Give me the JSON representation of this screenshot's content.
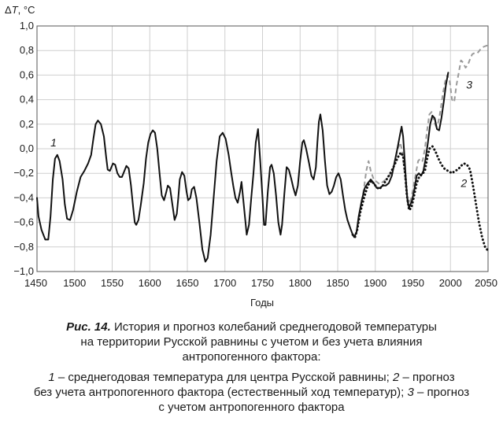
{
  "chart_data": {
    "type": "line",
    "ylabel_prefix": "Δ",
    "ylabel_var": "T",
    "ylabel_unit": ", °C",
    "xlabel": "Годы",
    "xlim": [
      1450,
      2050
    ],
    "ylim": [
      -1.0,
      1.0
    ],
    "x_ticks": [
      "1450",
      "1500",
      "1550",
      "1600",
      "1650",
      "1700",
      "1750",
      "1800",
      "1850",
      "1900",
      "1950",
      "2000",
      "2050"
    ],
    "y_ticks": [
      "1,0",
      "0,8",
      "0,6",
      "0,4",
      "0,2",
      "0,0",
      "−0,2",
      "−0,4",
      "−0,6",
      "−0,8",
      "−1,0"
    ],
    "series": [
      {
        "name": "1",
        "style": "solid",
        "color": "#111111",
        "points": [
          [
            1450,
            -0.4
          ],
          [
            1452,
            -0.55
          ],
          [
            1456,
            -0.66
          ],
          [
            1461,
            -0.74
          ],
          [
            1465,
            -0.74
          ],
          [
            1468,
            -0.55
          ],
          [
            1471,
            -0.25
          ],
          [
            1474,
            -0.08
          ],
          [
            1477,
            -0.05
          ],
          [
            1480,
            -0.1
          ],
          [
            1484,
            -0.25
          ],
          [
            1487,
            -0.45
          ],
          [
            1490,
            -0.57
          ],
          [
            1494,
            -0.58
          ],
          [
            1498,
            -0.5
          ],
          [
            1503,
            -0.35
          ],
          [
            1508,
            -0.23
          ],
          [
            1513,
            -0.18
          ],
          [
            1518,
            -0.12
          ],
          [
            1522,
            -0.05
          ],
          [
            1525,
            0.08
          ],
          [
            1528,
            0.2
          ],
          [
            1531,
            0.23
          ],
          [
            1535,
            0.2
          ],
          [
            1539,
            0.1
          ],
          [
            1542,
            -0.07
          ],
          [
            1544,
            -0.17
          ],
          [
            1547,
            -0.18
          ],
          [
            1551,
            -0.12
          ],
          [
            1554,
            -0.13
          ],
          [
            1557,
            -0.2
          ],
          [
            1560,
            -0.23
          ],
          [
            1563,
            -0.23
          ],
          [
            1567,
            -0.17
          ],
          [
            1569,
            -0.14
          ],
          [
            1572,
            -0.16
          ],
          [
            1575,
            -0.3
          ],
          [
            1578,
            -0.48
          ],
          [
            1580,
            -0.6
          ],
          [
            1582,
            -0.62
          ],
          [
            1585,
            -0.58
          ],
          [
            1588,
            -0.46
          ],
          [
            1592,
            -0.28
          ],
          [
            1595,
            -0.08
          ],
          [
            1598,
            0.05
          ],
          [
            1601,
            0.12
          ],
          [
            1604,
            0.15
          ],
          [
            1607,
            0.13
          ],
          [
            1610,
            0.0
          ],
          [
            1613,
            -0.2
          ],
          [
            1616,
            -0.38
          ],
          [
            1619,
            -0.42
          ],
          [
            1622,
            -0.35
          ],
          [
            1624,
            -0.3
          ],
          [
            1627,
            -0.32
          ],
          [
            1630,
            -0.45
          ],
          [
            1633,
            -0.58
          ],
          [
            1636,
            -0.53
          ],
          [
            1638,
            -0.4
          ],
          [
            1640,
            -0.25
          ],
          [
            1643,
            -0.19
          ],
          [
            1646,
            -0.22
          ],
          [
            1649,
            -0.35
          ],
          [
            1651,
            -0.42
          ],
          [
            1654,
            -0.4
          ],
          [
            1656,
            -0.33
          ],
          [
            1659,
            -0.31
          ],
          [
            1662,
            -0.4
          ],
          [
            1666,
            -0.6
          ],
          [
            1670,
            -0.82
          ],
          [
            1674,
            -0.92
          ],
          [
            1677,
            -0.89
          ],
          [
            1681,
            -0.7
          ],
          [
            1685,
            -0.4
          ],
          [
            1689,
            -0.1
          ],
          [
            1693,
            0.1
          ],
          [
            1697,
            0.13
          ],
          [
            1701,
            0.08
          ],
          [
            1705,
            -0.05
          ],
          [
            1708,
            -0.18
          ],
          [
            1711,
            -0.3
          ],
          [
            1714,
            -0.4
          ],
          [
            1717,
            -0.44
          ],
          [
            1720,
            -0.35
          ],
          [
            1722,
            -0.27
          ],
          [
            1725,
            -0.45
          ],
          [
            1729,
            -0.7
          ],
          [
            1732,
            -0.62
          ],
          [
            1735,
            -0.4
          ],
          [
            1738,
            -0.2
          ],
          [
            1741,
            0.05
          ],
          [
            1744,
            0.16
          ],
          [
            1747,
            -0.1
          ],
          [
            1750,
            -0.4
          ],
          [
            1752,
            -0.62
          ],
          [
            1754,
            -0.62
          ],
          [
            1757,
            -0.35
          ],
          [
            1760,
            -0.15
          ],
          [
            1762,
            -0.13
          ],
          [
            1765,
            -0.2
          ],
          [
            1768,
            -0.38
          ],
          [
            1771,
            -0.6
          ],
          [
            1774,
            -0.7
          ],
          [
            1776,
            -0.62
          ],
          [
            1779,
            -0.37
          ],
          [
            1782,
            -0.15
          ],
          [
            1785,
            -0.17
          ],
          [
            1788,
            -0.24
          ],
          [
            1791,
            -0.32
          ],
          [
            1794,
            -0.38
          ],
          [
            1797,
            -0.3
          ],
          [
            1800,
            -0.1
          ],
          [
            1803,
            0.05
          ],
          [
            1805,
            0.07
          ],
          [
            1808,
            0.0
          ],
          [
            1812,
            -0.12
          ],
          [
            1815,
            -0.22
          ],
          [
            1818,
            -0.25
          ],
          [
            1821,
            -0.15
          ],
          [
            1823,
            0.05
          ],
          [
            1825,
            0.22
          ],
          [
            1827,
            0.28
          ],
          [
            1830,
            0.15
          ],
          [
            1833,
            -0.1
          ],
          [
            1836,
            -0.3
          ],
          [
            1839,
            -0.37
          ],
          [
            1842,
            -0.35
          ],
          [
            1845,
            -0.3
          ],
          [
            1848,
            -0.23
          ],
          [
            1851,
            -0.2
          ],
          [
            1854,
            -0.25
          ],
          [
            1857,
            -0.38
          ],
          [
            1860,
            -0.5
          ],
          [
            1863,
            -0.58
          ],
          [
            1867,
            -0.65
          ],
          [
            1870,
            -0.7
          ],
          [
            1872,
            -0.72
          ],
          [
            1875,
            -0.68
          ],
          [
            1878,
            -0.55
          ],
          [
            1882,
            -0.42
          ],
          [
            1886,
            -0.32
          ],
          [
            1890,
            -0.28
          ],
          [
            1894,
            -0.25
          ],
          [
            1898,
            -0.28
          ],
          [
            1902,
            -0.32
          ],
          [
            1906,
            -0.32
          ],
          [
            1910,
            -0.3
          ],
          [
            1914,
            -0.3
          ],
          [
            1918,
            -0.28
          ],
          [
            1922,
            -0.22
          ],
          [
            1926,
            -0.1
          ],
          [
            1930,
            0.02
          ],
          [
            1933,
            0.12
          ],
          [
            1935,
            0.18
          ],
          [
            1937,
            0.1
          ],
          [
            1939,
            -0.08
          ],
          [
            1941,
            -0.28
          ],
          [
            1943,
            -0.43
          ],
          [
            1945,
            -0.48
          ],
          [
            1947,
            -0.45
          ],
          [
            1949,
            -0.42
          ],
          [
            1952,
            -0.33
          ],
          [
            1955,
            -0.22
          ],
          [
            1958,
            -0.2
          ],
          [
            1961,
            -0.22
          ],
          [
            1964,
            -0.18
          ],
          [
            1967,
            -0.08
          ],
          [
            1970,
            0.05
          ],
          [
            1973,
            0.2
          ],
          [
            1976,
            0.27
          ],
          [
            1979,
            0.25
          ],
          [
            1982,
            0.16
          ],
          [
            1985,
            0.15
          ],
          [
            1988,
            0.25
          ],
          [
            1991,
            0.38
          ],
          [
            1994,
            0.52
          ],
          [
            1997,
            0.62
          ]
        ]
      },
      {
        "name": "2",
        "style": "dotted",
        "color": "#111111",
        "points": [
          [
            1870,
            -0.7
          ],
          [
            1873,
            -0.72
          ],
          [
            1876,
            -0.66
          ],
          [
            1880,
            -0.52
          ],
          [
            1885,
            -0.4
          ],
          [
            1890,
            -0.3
          ],
          [
            1895,
            -0.26
          ],
          [
            1900,
            -0.3
          ],
          [
            1905,
            -0.33
          ],
          [
            1910,
            -0.3
          ],
          [
            1915,
            -0.25
          ],
          [
            1920,
            -0.2
          ],
          [
            1925,
            -0.14
          ],
          [
            1930,
            -0.07
          ],
          [
            1934,
            -0.03
          ],
          [
            1937,
            -0.06
          ],
          [
            1940,
            -0.22
          ],
          [
            1942,
            -0.38
          ],
          [
            1945,
            -0.5
          ],
          [
            1948,
            -0.48
          ],
          [
            1951,
            -0.4
          ],
          [
            1955,
            -0.28
          ],
          [
            1959,
            -0.22
          ],
          [
            1962,
            -0.21
          ],
          [
            1966,
            -0.18
          ],
          [
            1969,
            -0.08
          ],
          [
            1972,
            0.0
          ],
          [
            1976,
            0.02
          ],
          [
            1980,
            -0.02
          ],
          [
            1984,
            -0.08
          ],
          [
            1988,
            -0.13
          ],
          [
            1993,
            -0.17
          ],
          [
            1997,
            -0.18
          ],
          [
            2002,
            -0.2
          ],
          [
            2006,
            -0.18
          ],
          [
            2010,
            -0.17
          ],
          [
            2014,
            -0.14
          ],
          [
            2018,
            -0.12
          ],
          [
            2022,
            -0.13
          ],
          [
            2026,
            -0.17
          ],
          [
            2030,
            -0.3
          ],
          [
            2034,
            -0.45
          ],
          [
            2038,
            -0.6
          ],
          [
            2042,
            -0.72
          ],
          [
            2046,
            -0.8
          ],
          [
            2050,
            -0.83
          ]
        ]
      },
      {
        "name": "3",
        "style": "dashed",
        "color": "#9a9a9a",
        "points": [
          [
            1870,
            -0.7
          ],
          [
            1873,
            -0.72
          ],
          [
            1876,
            -0.65
          ],
          [
            1880,
            -0.5
          ],
          [
            1885,
            -0.32
          ],
          [
            1888,
            -0.18
          ],
          [
            1891,
            -0.1
          ],
          [
            1894,
            -0.18
          ],
          [
            1898,
            -0.25
          ],
          [
            1902,
            -0.27
          ],
          [
            1906,
            -0.29
          ],
          [
            1910,
            -0.27
          ],
          [
            1914,
            -0.25
          ],
          [
            1918,
            -0.22
          ],
          [
            1922,
            -0.2
          ],
          [
            1926,
            -0.1
          ],
          [
            1930,
            0.0
          ],
          [
            1933,
            0.05
          ],
          [
            1936,
            -0.02
          ],
          [
            1939,
            -0.2
          ],
          [
            1942,
            -0.38
          ],
          [
            1945,
            -0.45
          ],
          [
            1948,
            -0.4
          ],
          [
            1951,
            -0.3
          ],
          [
            1954,
            -0.2
          ],
          [
            1957,
            -0.1
          ],
          [
            1960,
            -0.08
          ],
          [
            1963,
            -0.1
          ],
          [
            1966,
            0.0
          ],
          [
            1969,
            0.15
          ],
          [
            1972,
            0.28
          ],
          [
            1975,
            0.3
          ],
          [
            1978,
            0.22
          ],
          [
            1981,
            0.18
          ],
          [
            1984,
            0.22
          ],
          [
            1987,
            0.32
          ],
          [
            1990,
            0.45
          ],
          [
            1993,
            0.55
          ],
          [
            1996,
            0.6
          ],
          [
            1999,
            0.55
          ],
          [
            2002,
            0.4
          ],
          [
            2005,
            0.38
          ],
          [
            2008,
            0.52
          ],
          [
            2011,
            0.62
          ],
          [
            2014,
            0.72
          ],
          [
            2017,
            0.7
          ],
          [
            2020,
            0.66
          ],
          [
            2023,
            0.68
          ],
          [
            2026,
            0.73
          ],
          [
            2029,
            0.77
          ],
          [
            2032,
            0.78
          ],
          [
            2036,
            0.78
          ],
          [
            2040,
            0.81
          ],
          [
            2044,
            0.83
          ],
          [
            2048,
            0.84
          ],
          [
            2050,
            0.84
          ]
        ]
      }
    ],
    "curve_labels": [
      {
        "text": "1",
        "x": 1472,
        "y": 0.02
      },
      {
        "text": "2",
        "x": 2018,
        "y": -0.31
      },
      {
        "text": "3",
        "x": 2025,
        "y": 0.49
      }
    ]
  },
  "caption": {
    "fig_label": "Рис. 14.",
    "line1": " История и прогноз колебаний среднегодовой температуры",
    "line2": "на территории Русской равнины с учетом и без учета влияния",
    "line3": "антропогенного фактора:"
  },
  "legend": {
    "n1": "1",
    "t1": " – среднегодовая температура для центра Русской равнины; ",
    "n2": "2",
    "t2": " – прогноз",
    "t2b": "без учета антропогенного фактора (естественный ход температур); ",
    "n3": "3",
    "t3": " – прогноз",
    "t3b": "с учетом антропогенного фактора"
  }
}
